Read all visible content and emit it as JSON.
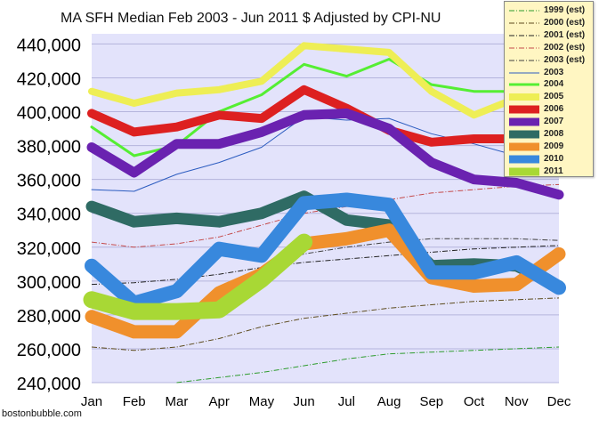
{
  "chart_data": {
    "type": "line",
    "title": "MA SFH Median Feb 2003 - Jun 2011 $ Adjusted by CPI-NU",
    "categories": [
      "Jan",
      "Feb",
      "Mar",
      "Apr",
      "May",
      "Jun",
      "Jul",
      "Aug",
      "Sep",
      "Oct",
      "Nov",
      "Dec"
    ],
    "y_tick_labels": [
      "240,000",
      "260,000",
      "280,000",
      "300,000",
      "320,000",
      "340,000",
      "360,000",
      "380,000",
      "400,000",
      "420,000",
      "440,000"
    ],
    "ylim": [
      240000,
      446000
    ],
    "y_ticks": [
      240000,
      260000,
      280000,
      300000,
      320000,
      340000,
      360000,
      380000,
      400000,
      420000,
      440000
    ],
    "grid": "horizontal",
    "legend_position": "top-right",
    "series": [
      {
        "name": "1999 (est)",
        "color": "#2e9c2e",
        "values": [
          null,
          null,
          240000,
          243000,
          246000,
          250000,
          254000,
          257000,
          258000,
          259000,
          260000,
          261000
        ]
      },
      {
        "name": "2000 (est)",
        "color": "#5c4a1c",
        "values": [
          261000,
          259000,
          261000,
          266000,
          273000,
          278000,
          281000,
          284000,
          286000,
          288000,
          289000,
          290000
        ]
      },
      {
        "name": "2001 (est)",
        "color": "#222222",
        "values": [
          298000,
          299000,
          301000,
          304000,
          308000,
          311000,
          313000,
          315000,
          317000,
          319000,
          320000,
          321000
        ]
      },
      {
        "name": "2002 (est)",
        "color": "#c44a4a",
        "values": [
          323000,
          320000,
          322000,
          326000,
          333000,
          340000,
          344000,
          348000,
          352000,
          354000,
          356000,
          357000
        ]
      },
      {
        "name": "2003 (est)",
        "color": "#404040",
        "values": [
          null,
          null,
          null,
          null,
          308000,
          316000,
          320000,
          323000,
          325000,
          325000,
          325000,
          324000
        ]
      },
      {
        "name": "2003",
        "color": "#2c5cc0",
        "values": [
          354000,
          353000,
          363000,
          370000,
          379000,
          397000,
          395000,
          396000,
          387000,
          381000,
          374000,
          384000
        ]
      },
      {
        "name": "2004",
        "color": "#55ee33",
        "values": [
          391000,
          374000,
          380000,
          400000,
          410000,
          428000,
          421000,
          431000,
          416000,
          412000,
          412000,
          412000
        ]
      },
      {
        "name": "2005",
        "color": "#eeee55",
        "values": [
          412000,
          405000,
          411000,
          413000,
          418000,
          439000,
          437000,
          435000,
          412000,
          398000,
          408000,
          410000
        ]
      },
      {
        "name": "2006",
        "color": "#dd2020",
        "values": [
          399000,
          388000,
          391000,
          398000,
          396000,
          413000,
          402000,
          389000,
          382000,
          384000,
          384000,
          378000
        ]
      },
      {
        "name": "2007",
        "color": "#6a22b0",
        "values": [
          379000,
          364000,
          381000,
          381000,
          388000,
          398000,
          399000,
          390000,
          370000,
          360000,
          358000,
          351000
        ]
      },
      {
        "name": "2008",
        "color": "#2f6b64",
        "values": [
          344000,
          335000,
          337000,
          335000,
          340000,
          350000,
          336000,
          333000,
          309000,
          310000,
          309000,
          297000
        ]
      },
      {
        "name": "2009",
        "color": "#f0902c",
        "values": [
          279000,
          270000,
          270000,
          293000,
          304000,
          322000,
          325000,
          330000,
          302000,
          297000,
          298000,
          316000
        ]
      },
      {
        "name": "2010",
        "color": "#3888dd",
        "values": [
          309000,
          287000,
          294000,
          319000,
          315000,
          346000,
          348000,
          345000,
          305000,
          305000,
          311000,
          296000
        ]
      },
      {
        "name": "2011",
        "color": "#a8d835",
        "values": [
          289000,
          282000,
          282000,
          283000,
          301000,
          323000,
          null,
          null,
          null,
          null,
          null,
          null
        ]
      }
    ]
  },
  "watermark": "bostonbubble.com"
}
